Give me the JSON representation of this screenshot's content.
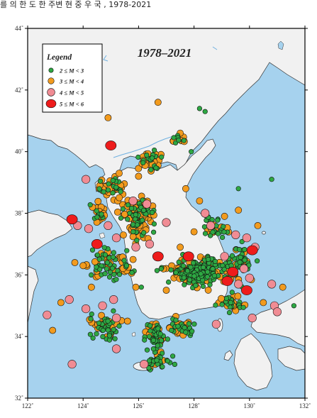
{
  "header": {
    "cropped_text": "를 의 한 도 한 주변 현 중 우 국 ,  1978-2021"
  },
  "map": {
    "title": "1978–2021",
    "lon_range": [
      122,
      132
    ],
    "lat_range": [
      32,
      44
    ],
    "x_ticks": [
      {
        "value": 122,
        "label": "122˚"
      },
      {
        "value": 124,
        "label": "124˚"
      },
      {
        "value": 126,
        "label": "126˚"
      },
      {
        "value": 128,
        "label": "128˚"
      },
      {
        "value": 130,
        "label": "130˚"
      },
      {
        "value": 132,
        "label": "132˚"
      }
    ],
    "y_ticks": [
      {
        "value": 32,
        "label": "32˚"
      },
      {
        "value": 34,
        "label": "34˚"
      },
      {
        "value": 36,
        "label": "36˚"
      },
      {
        "value": 38,
        "label": "38˚"
      },
      {
        "value": 40,
        "label": "40˚"
      },
      {
        "value": 42,
        "label": "42˚"
      },
      {
        "value": 44,
        "label": "44˚"
      }
    ],
    "colors": {
      "sea": "#a6d2ee",
      "land": "#f1f1f1",
      "coast": "#333333",
      "frame": "#000000"
    }
  },
  "legend": {
    "title": "Legend",
    "items": [
      {
        "label": "2 ≤ M < 3",
        "color": "#2ea843",
        "size": "small"
      },
      {
        "label": "3 ≤ M < 4",
        "color": "#f29b1e",
        "size": "medium"
      },
      {
        "label": "4 ≤ M < 5",
        "color": "#f08c94",
        "size": "large"
      },
      {
        "label": "5 ≤ M < 6",
        "color": "#ee1c1c",
        "size": "largest"
      }
    ]
  },
  "events": {
    "m5": [
      [
        125.0,
        40.2
      ],
      [
        123.6,
        37.8
      ],
      [
        124.5,
        37.0
      ],
      [
        126.7,
        36.6
      ],
      [
        127.8,
        36.6
      ],
      [
        129.2,
        35.8
      ],
      [
        129.4,
        36.1
      ],
      [
        130.1,
        36.8
      ],
      [
        129.9,
        35.5
      ]
    ],
    "m4": [
      [
        124.1,
        39.1
      ],
      [
        125.8,
        38.4
      ],
      [
        126.3,
        38.3
      ],
      [
        123.8,
        37.6
      ],
      [
        124.2,
        37.5
      ],
      [
        124.9,
        37.6
      ],
      [
        125.2,
        37.2
      ],
      [
        125.9,
        36.9
      ],
      [
        126.4,
        37.0
      ],
      [
        128.6,
        37.6
      ],
      [
        129.5,
        37.3
      ],
      [
        129.9,
        37.2
      ],
      [
        130.2,
        36.9
      ],
      [
        129.1,
        36.6
      ],
      [
        129.8,
        36.2
      ],
      [
        130.0,
        35.9
      ],
      [
        129.6,
        35.7
      ],
      [
        125.1,
        35.2
      ],
      [
        124.7,
        35.0
      ],
      [
        124.1,
        34.9
      ],
      [
        125.2,
        34.6
      ],
      [
        123.5,
        35.2
      ],
      [
        122.7,
        34.7
      ],
      [
        123.6,
        33.1
      ],
      [
        125.2,
        33.6
      ],
      [
        126.2,
        33.1
      ],
      [
        128.8,
        34.4
      ],
      [
        130.1,
        34.6
      ],
      [
        130.9,
        35.0
      ],
      [
        131.0,
        34.8
      ],
      [
        130.8,
        35.7
      ],
      [
        128.4,
        38.0
      ],
      [
        127.0,
        37.7
      ]
    ],
    "m3_extra": [
      [
        123.2,
        35.1
      ],
      [
        124.3,
        35.6
      ],
      [
        124.0,
        36.3
      ],
      [
        123.7,
        36.4
      ],
      [
        122.9,
        34.2
      ],
      [
        125.8,
        36.5
      ],
      [
        125.9,
        35.6
      ],
      [
        125.6,
        34.5
      ],
      [
        127.0,
        35.5
      ],
      [
        127.5,
        36.9
      ],
      [
        128.0,
        37.4
      ],
      [
        126.8,
        33.5
      ],
      [
        126.6,
        34.3
      ],
      [
        129.1,
        37.9
      ],
      [
        129.6,
        38.1
      ],
      [
        130.3,
        37.6
      ],
      [
        130.5,
        35.1
      ],
      [
        131.2,
        35.6
      ],
      [
        124.9,
        41.1
      ],
      [
        126.7,
        41.6
      ],
      [
        127.5,
        40.6
      ],
      [
        126.0,
        39.2
      ],
      [
        125.3,
        39.3
      ],
      [
        124.6,
        38.9
      ],
      [
        127.7,
        38.8
      ],
      [
        128.2,
        38.4
      ]
    ]
  }
}
